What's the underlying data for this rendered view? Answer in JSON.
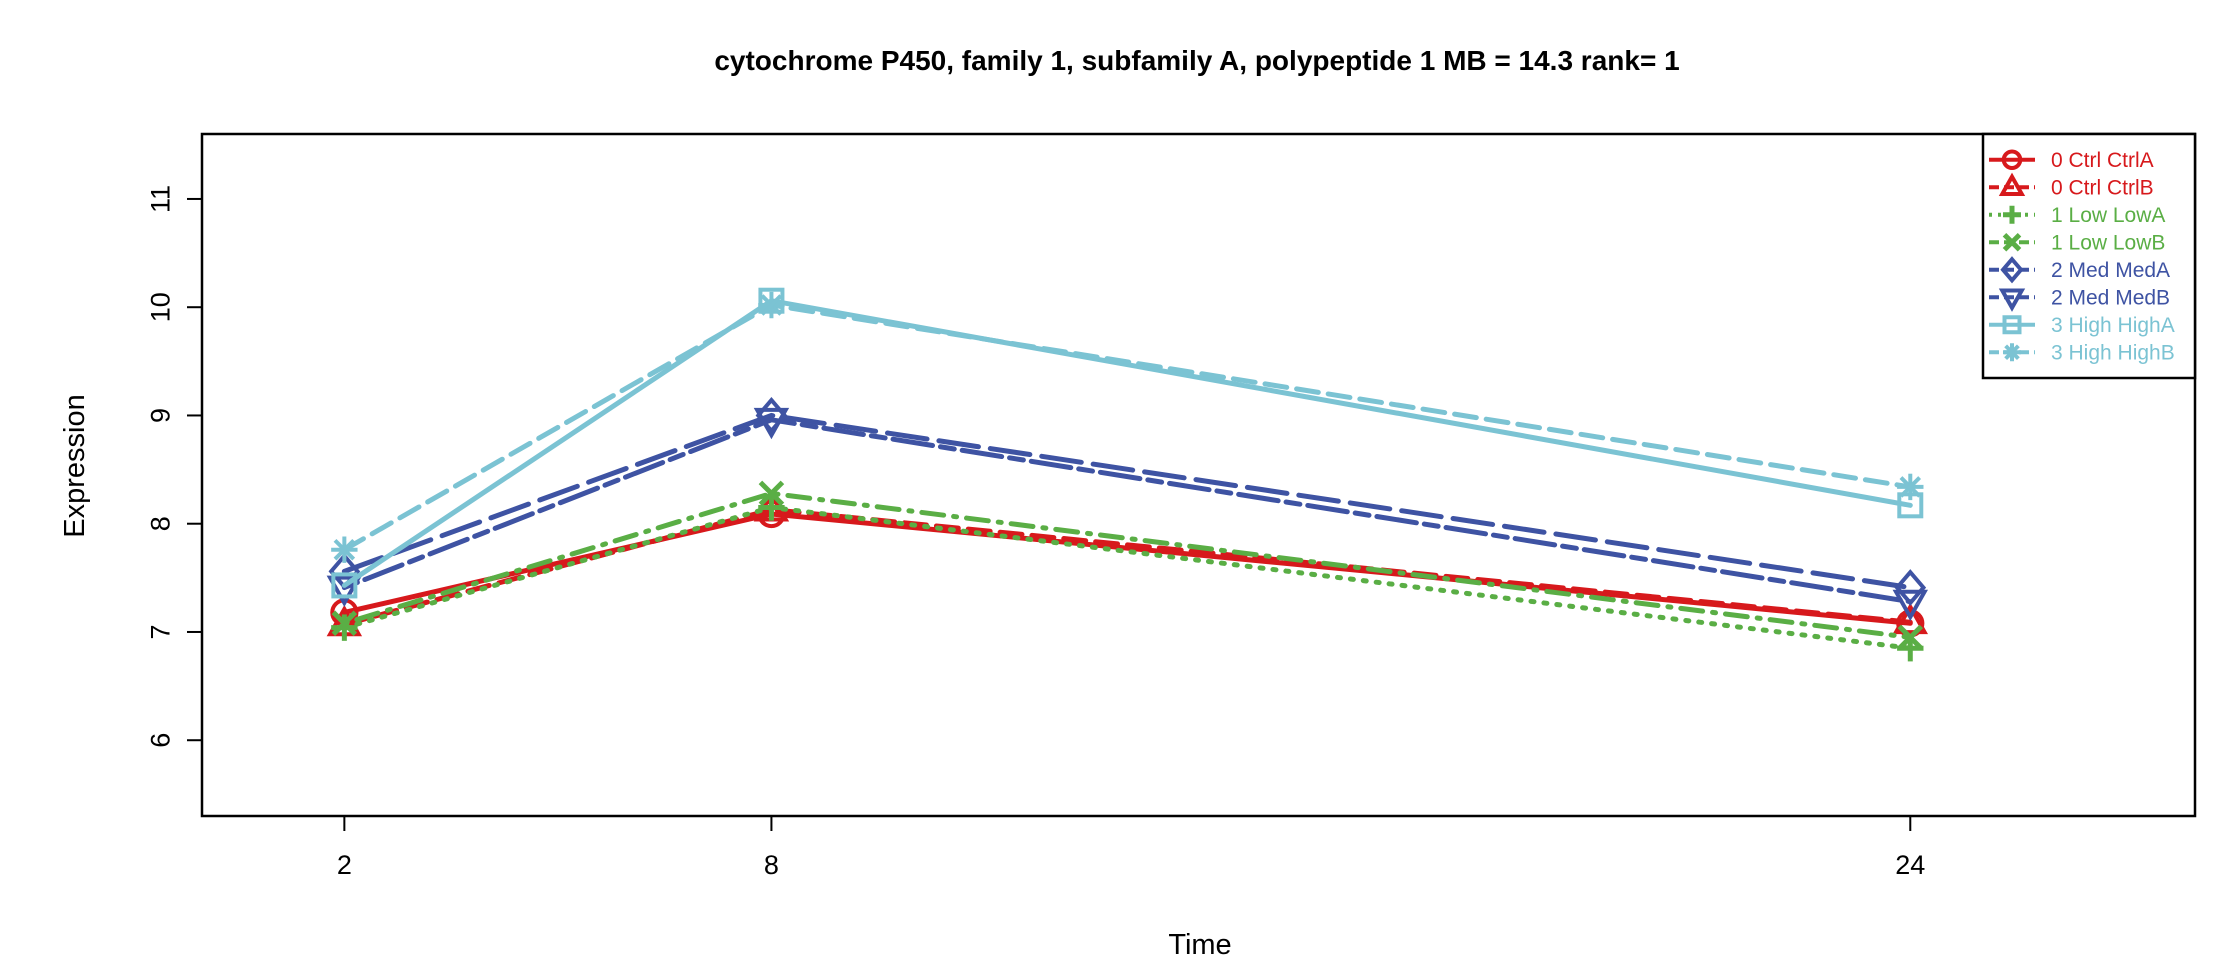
{
  "chart_data": {
    "type": "line",
    "title": "cytochrome P450, family 1, subfamily A, polypeptide 1  MB = 14.3  rank= 1",
    "xlabel": "Time",
    "ylabel": "Expression",
    "x": [
      2,
      8,
      24
    ],
    "x_tick_labels": [
      "2",
      "8",
      "24"
    ],
    "y_ticks": [
      6,
      7,
      8,
      9,
      10,
      11
    ],
    "xlim": [
      0,
      28
    ],
    "ylim": [
      5.3,
      11.6
    ],
    "grid": false,
    "legend_position": "top-right",
    "series": [
      {
        "name": "0 Ctrl CtrlA",
        "color": "#D7191C",
        "dash": "solid",
        "marker": "circle",
        "values": [
          7.18,
          8.09,
          7.08
        ]
      },
      {
        "name": "0 Ctrl CtrlB",
        "color": "#D7191C",
        "dash": "dashed",
        "marker": "triangle-up",
        "values": [
          7.07,
          8.13,
          7.09
        ]
      },
      {
        "name": "1 Low LowA",
        "color": "#5AAE45",
        "dash": "dotted",
        "marker": "plus",
        "values": [
          7.04,
          8.15,
          6.85
        ]
      },
      {
        "name": "1 Low LowB",
        "color": "#5AAE45",
        "dash": "dotdash",
        "marker": "cross",
        "values": [
          7.08,
          8.28,
          6.95
        ]
      },
      {
        "name": "2 Med MedA",
        "color": "#3E53A3",
        "dash": "longdash",
        "marker": "diamond",
        "values": [
          7.56,
          9.0,
          7.41
        ]
      },
      {
        "name": "2 Med MedB",
        "color": "#3E53A3",
        "dash": "twodash",
        "marker": "triangle-down",
        "values": [
          7.41,
          8.96,
          7.28
        ]
      },
      {
        "name": "3 High HighA",
        "color": "#7BC3D3",
        "dash": "solid",
        "marker": "square",
        "values": [
          7.43,
          10.06,
          8.17
        ]
      },
      {
        "name": "3 High HighB",
        "color": "#7BC3D3",
        "dash": "dashed",
        "marker": "asterisk",
        "values": [
          7.76,
          10.02,
          8.34
        ]
      }
    ]
  }
}
